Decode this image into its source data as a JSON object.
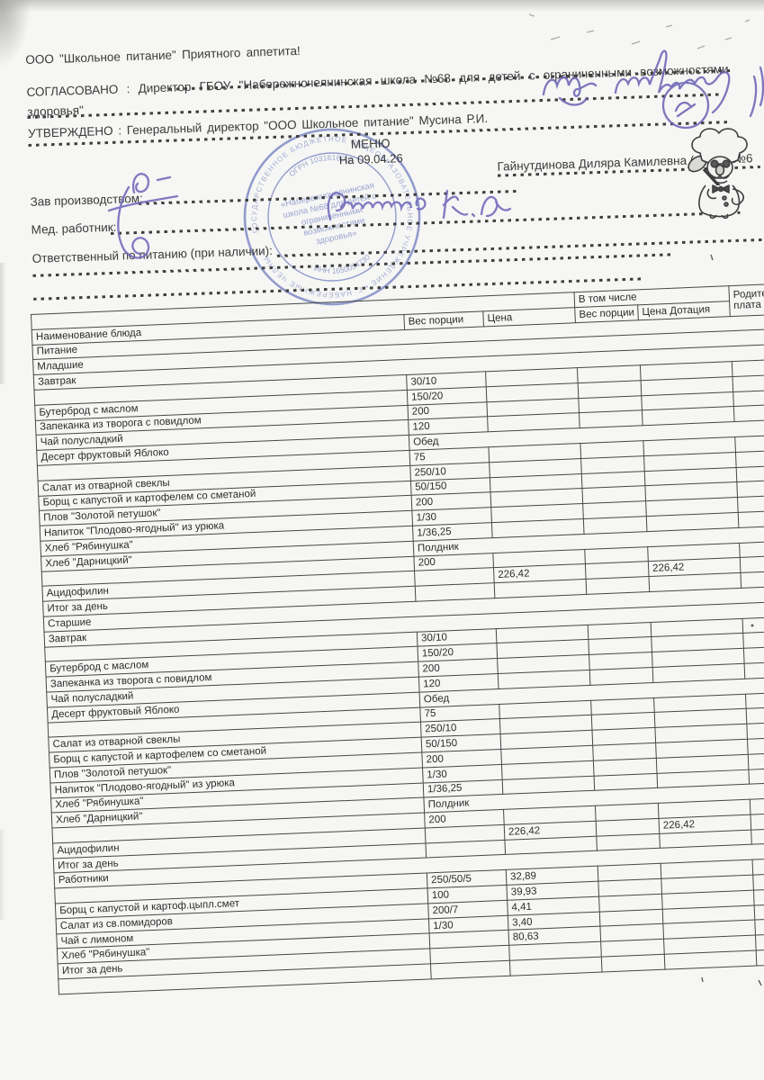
{
  "header": {
    "company_line": "ООО \"Школьное питание\" Приятного аппетита!",
    "agreed_line1": "СОГЛАСОВАНО : Директор ГБОУ \"Набережночелнинская школа №68 для детей с ограниченными возможностями",
    "agreed_line2": "здоровья\"",
    "approved_line": "УТВЕРЖДЕНО : Генеральный директор \"ООО Школьное питание\" Мусина Р.И.",
    "menu_title": "МЕНЮ",
    "menu_date": "На 09.04.26",
    "director_name": "Гайнутдинова Диляра Камилевна (школа №6",
    "labels": {
      "production_manager": "Зав производством:",
      "med_worker": "Мед. работник:",
      "nutrition_responsible": "Ответственный по питанию (при наличии):"
    }
  },
  "handwriting": {
    "production_manager_signature": "Гай-",
    "med_worker_signature": "Галиева К.А",
    "top_right_signature": "Шайхут"
  },
  "stamp": {
    "color": "#5565b5",
    "ring_text": "ГОСУДАРСТВЕННОЕ БЮДЖЕТНОЕ ОБЩЕОБРАЗОВАТЕЛЬНОЕ УЧРЕЖДЕНИЕ • Г. НАБЕРЕЖНЫЕ ЧЕЛНЫ •",
    "ogrn": "ОГРН 1031616000",
    "inn": "ИНН 1650054730",
    "org_line1": "«Набережночелнинская",
    "org_line2": "школа №68 для детей с",
    "org_line3": "ограниченными",
    "org_line4": "возможностями",
    "org_line5": "здоровья»"
  },
  "table": {
    "headers": {
      "name": "Наименование блюда",
      "portion": "Вес порции",
      "price": "Цена",
      "including": "В том числе",
      "portion_incl": "Вес порции",
      "price_subsidy": "Цена Дотация",
      "parent_line1": "Родите",
      "parent_line2": "плата"
    },
    "rows": [
      {
        "t": "s",
        "v": "Питание"
      },
      {
        "t": "s",
        "v": "Младшие"
      },
      {
        "t": "s",
        "v": "Завтрак"
      },
      {
        "t": "d",
        "n": "",
        "w": "30/10"
      },
      {
        "t": "d",
        "n": "Бутерброд с маслом",
        "w": "150/20"
      },
      {
        "t": "d",
        "n": "Запеканка из творога с повидлом",
        "w": "200"
      },
      {
        "t": "d",
        "n": "Чай полусладкий",
        "w": "120"
      },
      {
        "t": "ds",
        "n": "Десерт фруктовый Яблоко",
        "v": "Обед"
      },
      {
        "t": "d",
        "n": "",
        "w": "75"
      },
      {
        "t": "d",
        "n": "Салат из отварной свеклы",
        "w": "250/10"
      },
      {
        "t": "d",
        "n": "Борщ с капустой и картофелем со сметаной",
        "w": "50/150"
      },
      {
        "t": "d",
        "n": "Плов \"Золотой петушок\"",
        "w": "200"
      },
      {
        "t": "d",
        "n": "Напиток \"Плодово-ягодный\" из урюка",
        "w": "1/30"
      },
      {
        "t": "d",
        "n": "Хлеб \"Рябинушка\"",
        "w": "1/36,25"
      },
      {
        "t": "ds",
        "n": "Хлеб \"Дарницкий\"",
        "v": "Полдник"
      },
      {
        "t": "d",
        "n": "",
        "w": "200"
      },
      {
        "t": "d",
        "n": "Ацидофилин",
        "c": "226,42",
        "cd": "226,42"
      },
      {
        "t": "i",
        "v": "Итог за день"
      },
      {
        "t": "s",
        "v": "Старшие"
      },
      {
        "t": "s",
        "v": "Завтрак"
      },
      {
        "t": "d",
        "n": "",
        "w": "30/10"
      },
      {
        "t": "d",
        "n": "Бутерброд с маслом",
        "w": "150/20"
      },
      {
        "t": "d",
        "n": "Запеканка из творога с повидлом",
        "w": "200"
      },
      {
        "t": "d",
        "n": "Чай полусладкий",
        "w": "120"
      },
      {
        "t": "ds",
        "n": "Десерт фруктовый Яблоко",
        "v": "Обед"
      },
      {
        "t": "d",
        "n": "",
        "w": "75"
      },
      {
        "t": "d",
        "n": "Салат из отварной свеклы",
        "w": "250/10"
      },
      {
        "t": "d",
        "n": "Борщ с капустой и картофелем со сметаной",
        "w": "50/150"
      },
      {
        "t": "d",
        "n": "Плов \"Золотой петушок\"",
        "w": "200"
      },
      {
        "t": "d",
        "n": "Напиток \"Плодово-ягодный\" из урюка",
        "w": "1/30"
      },
      {
        "t": "d",
        "n": "Хлеб \"Рябинушка\"",
        "w": "1/36,25"
      },
      {
        "t": "ds",
        "n": "Хлеб \"Дарницкий\"",
        "v": "Полдник"
      },
      {
        "t": "d",
        "n": "",
        "w": "200"
      },
      {
        "t": "d",
        "n": "Ацидофилин",
        "c": "226,42",
        "cd": "226,42"
      },
      {
        "t": "i",
        "v": "Итог за день"
      },
      {
        "t": "s",
        "v": "Работники"
      },
      {
        "t": "d",
        "n": "",
        "w": "250/50/5",
        "c": "32,89"
      },
      {
        "t": "d",
        "n": "Борщ с капустой и картоф.цыпл.смет",
        "w": "100",
        "c": "39,93"
      },
      {
        "t": "d",
        "n": "Салат из св.помидоров",
        "w": "200/7",
        "c": "4,41"
      },
      {
        "t": "d",
        "n": "Чай с лимоном",
        "w": "1/30",
        "c": "3,40"
      },
      {
        "t": "d",
        "n": "Хлеб \"Рябинушка\"",
        "c": "80,63"
      },
      {
        "t": "i",
        "v": "Итог за день"
      },
      {
        "t": "d",
        "n": ""
      }
    ]
  }
}
